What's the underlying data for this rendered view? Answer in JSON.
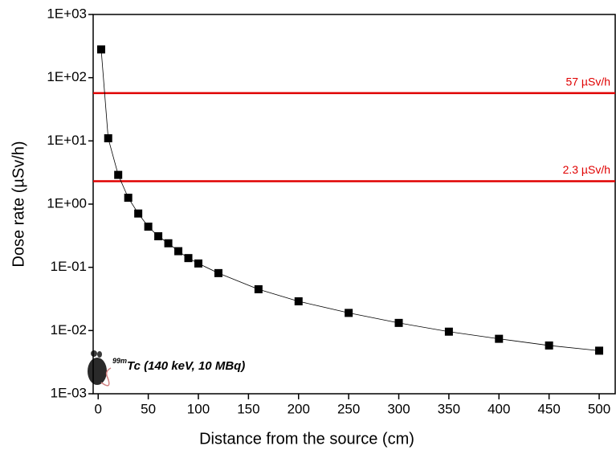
{
  "chart_data": {
    "type": "line",
    "x_label": "Distance from the source (cm)",
    "y_label": "Dose rate  (µSv/h)",
    "x": [
      3,
      10,
      20,
      30,
      40,
      50,
      60,
      70,
      80,
      90,
      100,
      120,
      160,
      200,
      250,
      300,
      350,
      400,
      450,
      500
    ],
    "values": [
      280,
      11,
      2.9,
      1.26,
      0.71,
      0.44,
      0.31,
      0.24,
      0.18,
      0.14,
      0.115,
      0.081,
      0.045,
      0.029,
      0.019,
      0.0132,
      0.0096,
      0.0074,
      0.0058,
      0.0048
    ],
    "color": "#000000",
    "marker": "square",
    "xlim": [
      -5,
      516
    ],
    "xticks": [
      0,
      50,
      100,
      150,
      200,
      250,
      300,
      350,
      400,
      450,
      500
    ],
    "ylim": [
      0.001,
      1000
    ],
    "y_scale": "log",
    "yticks": [
      {
        "value": 0.001,
        "label": "1E-03"
      },
      {
        "value": 0.01,
        "label": "1E-02"
      },
      {
        "value": 0.1,
        "label": "1E-01"
      },
      {
        "value": 1,
        "label": "1E+00"
      },
      {
        "value": 10,
        "label": "1E+01"
      },
      {
        "value": 100,
        "label": "1E+02"
      },
      {
        "value": 1000,
        "label": "1E+03"
      }
    ],
    "reference_lines": [
      {
        "value": 57,
        "label": "57 µSv/h",
        "color": "#e00000"
      },
      {
        "value": 2.3,
        "label": "2.3 µSv/h",
        "color": "#e00000"
      }
    ],
    "annotation": {
      "superscript": "99m",
      "text": "Tc (140 keV, 10 MBq)"
    }
  }
}
